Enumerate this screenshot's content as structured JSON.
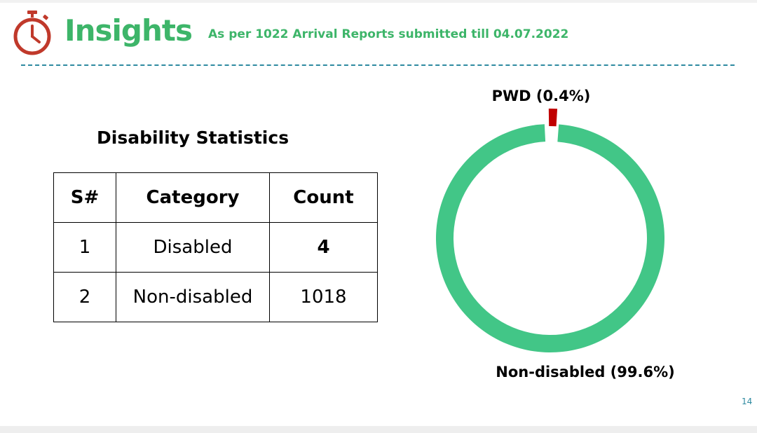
{
  "header": {
    "title": "Insights",
    "subtitle": "As per 1022 Arrival Reports submitted till 04.07.2022",
    "icon": "stopwatch-icon"
  },
  "section": {
    "title": "Disability Statistics"
  },
  "table": {
    "headers": [
      "S#",
      "Category",
      "Count"
    ],
    "rows": [
      {
        "sn": "1",
        "category": "Disabled",
        "count": "4"
      },
      {
        "sn": "2",
        "category": "Non-disabled",
        "count": "1018"
      }
    ]
  },
  "chart_data": {
    "type": "pie",
    "variant": "donut",
    "title": "",
    "slices": [
      {
        "name": "PWD",
        "label": "PWD (0.4%)",
        "value": 0.4,
        "color": "#c00000"
      },
      {
        "name": "Non-disabled",
        "label": "Non-disabled (99.6%)",
        "value": 99.6,
        "color": "#42c687"
      }
    ]
  },
  "colors": {
    "accent_green": "#3db569",
    "donut_green": "#42c687",
    "pwd_red": "#c00000",
    "divider_teal": "#2e8aa0"
  },
  "footer": {
    "page_number": "14"
  }
}
